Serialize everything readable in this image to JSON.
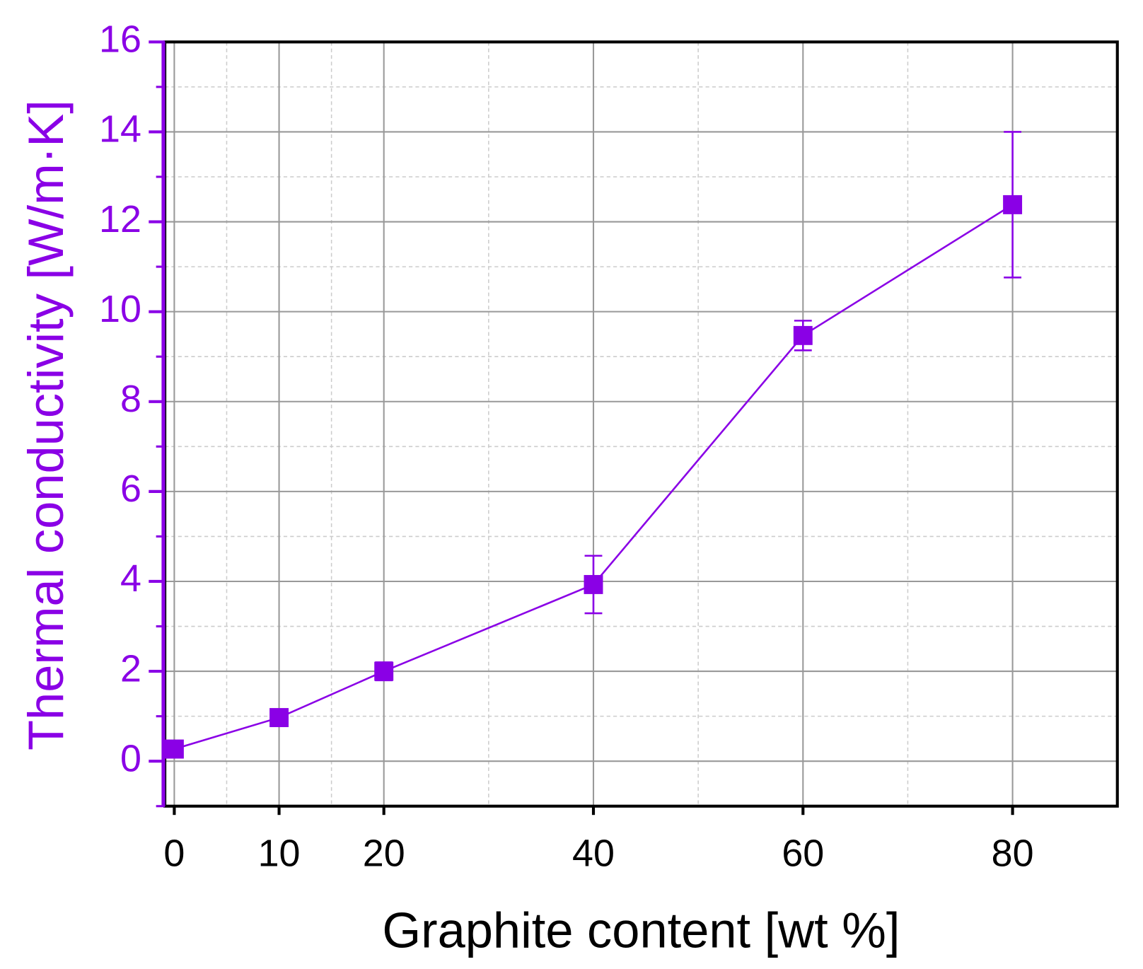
{
  "chart_data": {
    "type": "line",
    "x_label": "Graphite content [wt %]",
    "y_label": "Thermal conductivity [W/m·K]",
    "x": [
      0,
      10,
      20,
      40,
      60,
      80
    ],
    "series": [
      {
        "color": "#8a00e6",
        "values": [
          0.27,
          0.97,
          2.0,
          3.93,
          9.47,
          12.38
        ],
        "errors": [
          0.05,
          0.05,
          0.2,
          0.64,
          0.33,
          1.62
        ]
      }
    ],
    "xlim": [
      -0.9,
      90
    ],
    "ylim": [
      -1,
      16
    ],
    "xticks": [
      0,
      10,
      20,
      40,
      60,
      80
    ],
    "yticks": [
      0,
      2,
      4,
      6,
      8,
      10,
      12,
      14,
      16
    ],
    "xminorticks": [
      5,
      15,
      30,
      50,
      70
    ],
    "yminorticks": [
      -1,
      1,
      3,
      5,
      7,
      9,
      11,
      13,
      15
    ],
    "grid": true
  }
}
